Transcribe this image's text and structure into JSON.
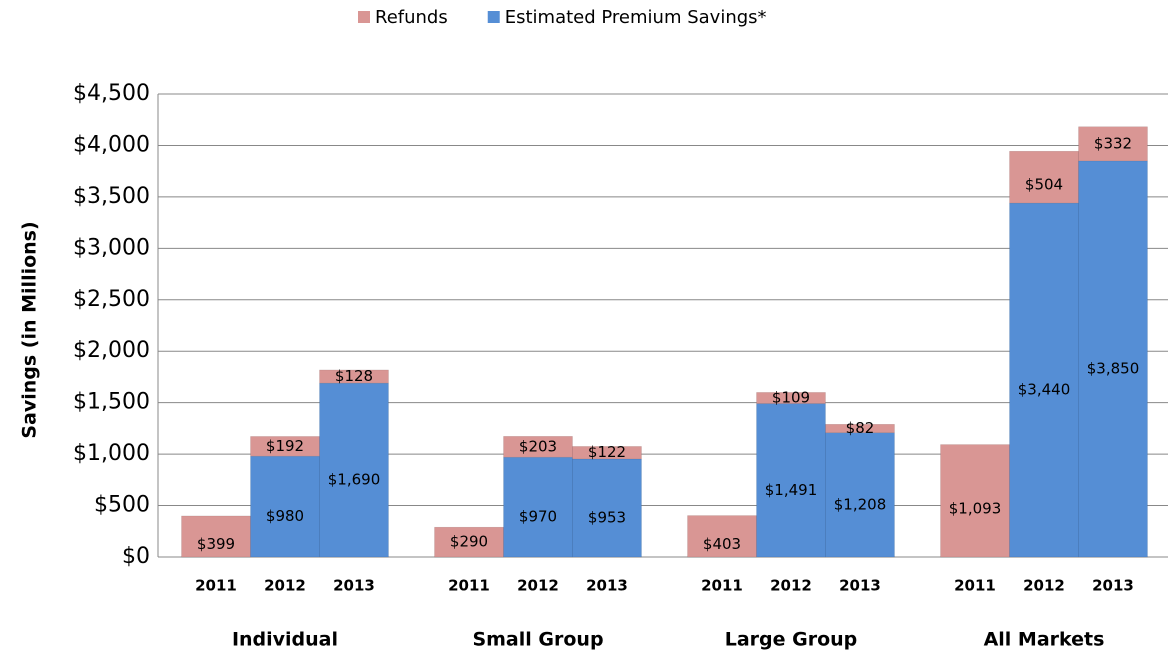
{
  "chart_data": {
    "type": "stacked_bar",
    "groups": [
      {
        "label": "Individual",
        "categories": [
          "2011",
          "2012",
          "2013"
        ]
      },
      {
        "label": "Small Group",
        "categories": [
          "2011",
          "2012",
          "2013"
        ]
      },
      {
        "label": "Large Group",
        "categories": [
          "2011",
          "2012",
          "2013"
        ]
      },
      {
        "label": "All Markets",
        "categories": [
          "2011",
          "2012",
          "2013"
        ]
      }
    ],
    "series": [
      {
        "name": "Estimated Premium Savings*",
        "color": "#558ed5",
        "values": [
          null,
          980,
          1690,
          null,
          970,
          953,
          null,
          1491,
          1208,
          null,
          3440,
          3850
        ],
        "value_labels": [
          null,
          "$980",
          "$1,690",
          null,
          "$970",
          "$953",
          null,
          "$1,491",
          "$1,208",
          null,
          "$3,440",
          "$3,850"
        ]
      },
      {
        "name": "Refunds",
        "color": "#d99694",
        "values": [
          399,
          192,
          128,
          290,
          203,
          122,
          403,
          109,
          82,
          1093,
          504,
          332
        ],
        "value_labels": [
          "$399",
          "$192",
          "$128",
          "$290",
          "$203",
          "$122",
          "$403",
          "$109",
          "$82",
          "$1,093",
          "$504",
          "$332"
        ]
      }
    ],
    "legend_order": [
      1,
      0
    ],
    "y_label": "Savings (in Millions)",
    "ylim": [
      0,
      4500
    ],
    "yticks": [
      {
        "value": 0,
        "label": "$0"
      },
      {
        "value": 500,
        "label": "$500"
      },
      {
        "value": 1000,
        "label": "$1,000"
      },
      {
        "value": 1500,
        "label": "$1,500"
      },
      {
        "value": 2000,
        "label": "$2,000"
      },
      {
        "value": 2500,
        "label": "$2,500"
      },
      {
        "value": 3000,
        "label": "$3,000"
      },
      {
        "value": 3500,
        "label": "$3,500"
      },
      {
        "value": 4000,
        "label": "$4,000"
      },
      {
        "value": 4500,
        "label": "$4,500"
      }
    ],
    "grid": true
  }
}
